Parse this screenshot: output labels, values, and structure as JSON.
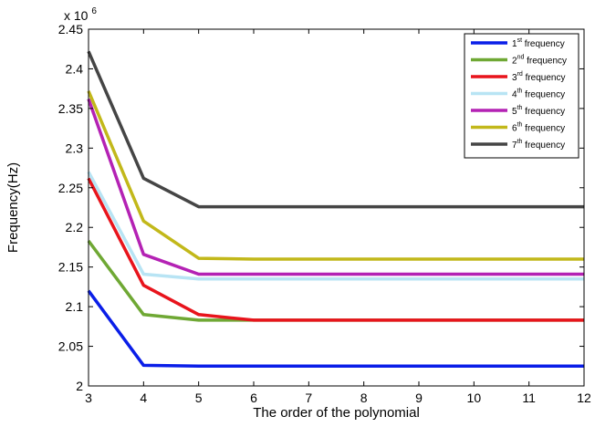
{
  "chart_data": {
    "type": "line",
    "xlabel": "The order of the polynomial",
    "ylabel": "Frequency(Hz)",
    "y_multiplier": {
      "base": "x 10",
      "exponent": "6"
    },
    "xlim": [
      3,
      12
    ],
    "ylim": [
      2.0,
      2.45
    ],
    "x_ticks": [
      "3",
      "4",
      "5",
      "6",
      "7",
      "8",
      "9",
      "10",
      "11",
      "12"
    ],
    "y_ticks": [
      "2",
      "2.05",
      "2.1",
      "2.15",
      "2.2",
      "2.25",
      "2.3",
      "2.35",
      "2.4",
      "2.45"
    ],
    "grid": false,
    "legend_position": "top-right",
    "x": [
      3,
      4,
      5,
      6,
      7,
      8,
      9,
      10,
      11,
      12
    ],
    "series": [
      {
        "name_num": "1",
        "name_sup": "st",
        "name_text": " frequency",
        "color": "#0a1ee8",
        "values": [
          2.12,
          2.026,
          2.025,
          2.025,
          2.025,
          2.025,
          2.025,
          2.025,
          2.025,
          2.025
        ]
      },
      {
        "name_num": "2",
        "name_sup": "nd",
        "name_text": " frequency",
        "color": "#6fa834",
        "values": [
          2.183,
          2.09,
          2.083,
          2.083,
          2.083,
          2.083,
          2.083,
          2.083,
          2.083,
          2.083
        ]
      },
      {
        "name_num": "3",
        "name_sup": "rd",
        "name_text": " frequency",
        "color": "#e8141c",
        "values": [
          2.262,
          2.127,
          2.09,
          2.083,
          2.083,
          2.083,
          2.083,
          2.083,
          2.083,
          2.083
        ]
      },
      {
        "name_num": "4",
        "name_sup": "th",
        "name_text": " frequency",
        "color": "#b8e4f4",
        "values": [
          2.27,
          2.141,
          2.135,
          2.135,
          2.135,
          2.135,
          2.135,
          2.135,
          2.135,
          2.135
        ]
      },
      {
        "name_num": "5",
        "name_sup": "th",
        "name_text": " frequency",
        "color": "#b422b4",
        "values": [
          2.362,
          2.166,
          2.141,
          2.141,
          2.141,
          2.141,
          2.141,
          2.141,
          2.141,
          2.141
        ]
      },
      {
        "name_num": "6",
        "name_sup": "th",
        "name_text": " frequency",
        "color": "#c2b81a",
        "values": [
          2.372,
          2.208,
          2.161,
          2.16,
          2.16,
          2.16,
          2.16,
          2.16,
          2.16,
          2.16
        ]
      },
      {
        "name_num": "7",
        "name_sup": "th",
        "name_text": " frequency",
        "color": "#454545",
        "values": [
          2.422,
          2.262,
          2.226,
          2.226,
          2.226,
          2.226,
          2.226,
          2.226,
          2.226,
          2.226
        ]
      }
    ]
  }
}
